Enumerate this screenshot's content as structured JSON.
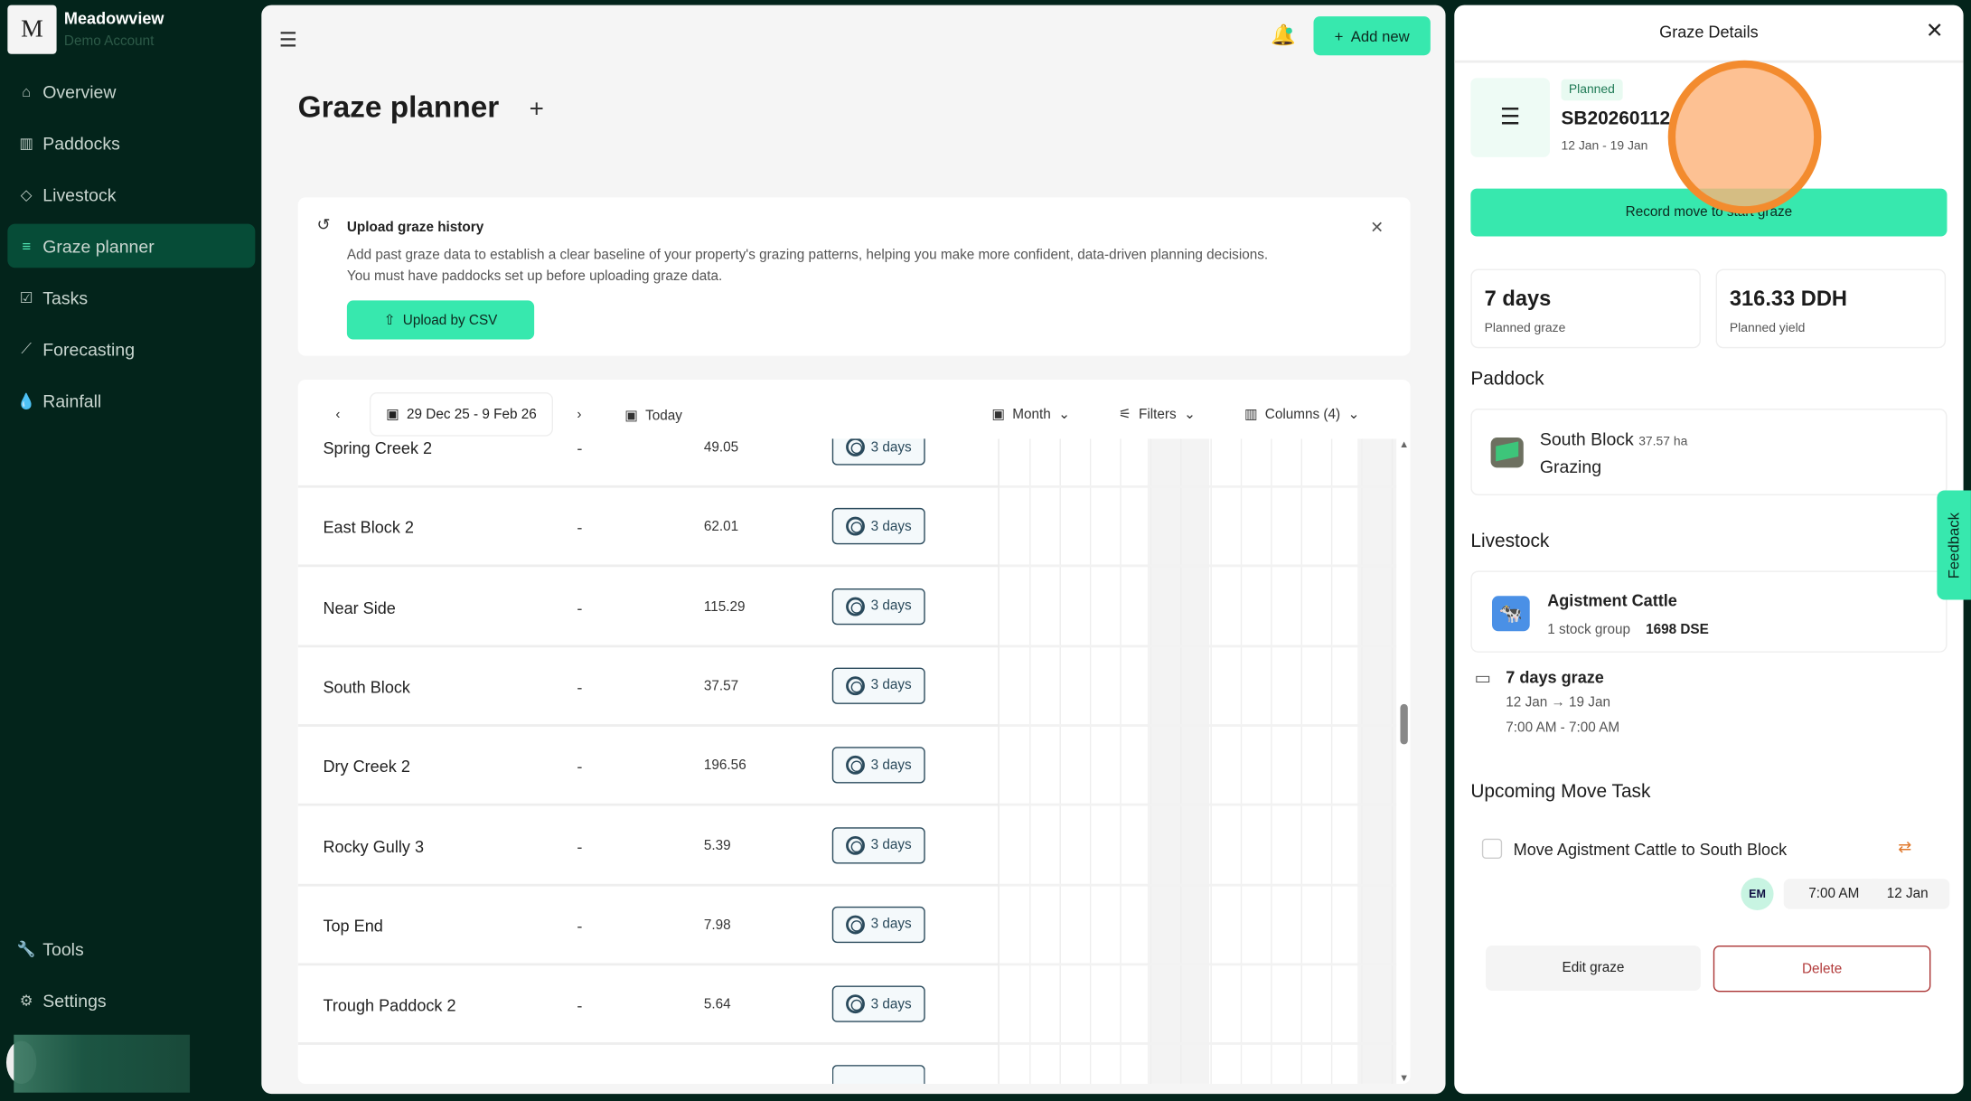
{
  "sidebar": {
    "org_initial": "M",
    "org_name": "Meadowview",
    "org_sub": "Demo Account",
    "items": [
      {
        "label": "Overview",
        "icon": "home-icon"
      },
      {
        "label": "Paddocks",
        "icon": "fence-icon"
      },
      {
        "label": "Livestock",
        "icon": "tag-icon"
      },
      {
        "label": "Graze planner",
        "icon": "list-icon",
        "active": true
      },
      {
        "label": "Tasks",
        "icon": "checkbox-icon"
      },
      {
        "label": "Forecasting",
        "icon": "chart-icon"
      },
      {
        "label": "Rainfall",
        "icon": "drops-icon"
      }
    ],
    "bottom": [
      {
        "label": "Tools",
        "icon": "wrench-icon"
      },
      {
        "label": "Settings",
        "icon": "gear-icon"
      }
    ]
  },
  "header": {
    "add_new": "Add new"
  },
  "page": {
    "title": "Graze planner"
  },
  "upload": {
    "title": "Upload graze history",
    "desc1": "Add past graze data to establish a clear baseline of your property's grazing patterns, helping you make more confident, data-driven planning decisions.",
    "desc2": "You must have paddocks set up before uploading graze data.",
    "button": "Upload by CSV"
  },
  "toolbar": {
    "date_range": "29 Dec 25 - 9 Feb 26",
    "today": "Today",
    "view": "Month",
    "filters": "Filters",
    "columns": "Columns (4)"
  },
  "rows": [
    {
      "name": "Spring Creek 2",
      "dash": "-",
      "area": "49.05",
      "badge": "3 days"
    },
    {
      "name": "East Block 2",
      "dash": "-",
      "area": "62.01",
      "badge": "3 days"
    },
    {
      "name": "Near Side",
      "dash": "-",
      "area": "115.29",
      "badge": "3 days"
    },
    {
      "name": "South Block",
      "dash": "-",
      "area": "37.57",
      "badge": "3 days"
    },
    {
      "name": "Dry Creek 2",
      "dash": "-",
      "area": "196.56",
      "badge": "3 days"
    },
    {
      "name": "Rocky Gully 3",
      "dash": "-",
      "area": "5.39",
      "badge": "3 days"
    },
    {
      "name": "Top End",
      "dash": "-",
      "area": "7.98",
      "badge": "3 days"
    },
    {
      "name": "Trough Paddock 2",
      "dash": "-",
      "area": "5.64",
      "badge": "3 days"
    }
  ],
  "panel": {
    "title": "Graze Details",
    "status": "Planned",
    "id": "SB20260112",
    "range": "12 Jan - 19 Jan",
    "record_btn": "Record move to start graze",
    "stat1_value": "7 days",
    "stat1_label": "Planned graze",
    "stat2_value": "316.33 DDH",
    "stat2_label": "Planned yield",
    "paddock_heading": "Paddock",
    "paddock_name": "South Block",
    "paddock_area": "37.57 ha",
    "paddock_status": "Grazing",
    "livestock_heading": "Livestock",
    "livestock_name": "Agistment Cattle",
    "livestock_groups": "1 stock group",
    "livestock_dse": "1698 DSE",
    "graze_days": "7 days graze",
    "graze_dates": "12 Jan → 19 Jan",
    "graze_times": "7:00 AM - 7:00 AM",
    "task_heading": "Upcoming Move Task",
    "task_label": "Move Agistment Cattle to South Block",
    "task_assignee": "EM",
    "task_time": "7:00 AM",
    "task_date": "12 Jan",
    "edit_btn": "Edit graze",
    "delete_btn": "Delete"
  },
  "feedback": "Feedback",
  "colors": {
    "accent": "#37e8ae",
    "sidebar": "#03241b",
    "active_nav": "#064c37",
    "delete": "#b23a3a"
  }
}
